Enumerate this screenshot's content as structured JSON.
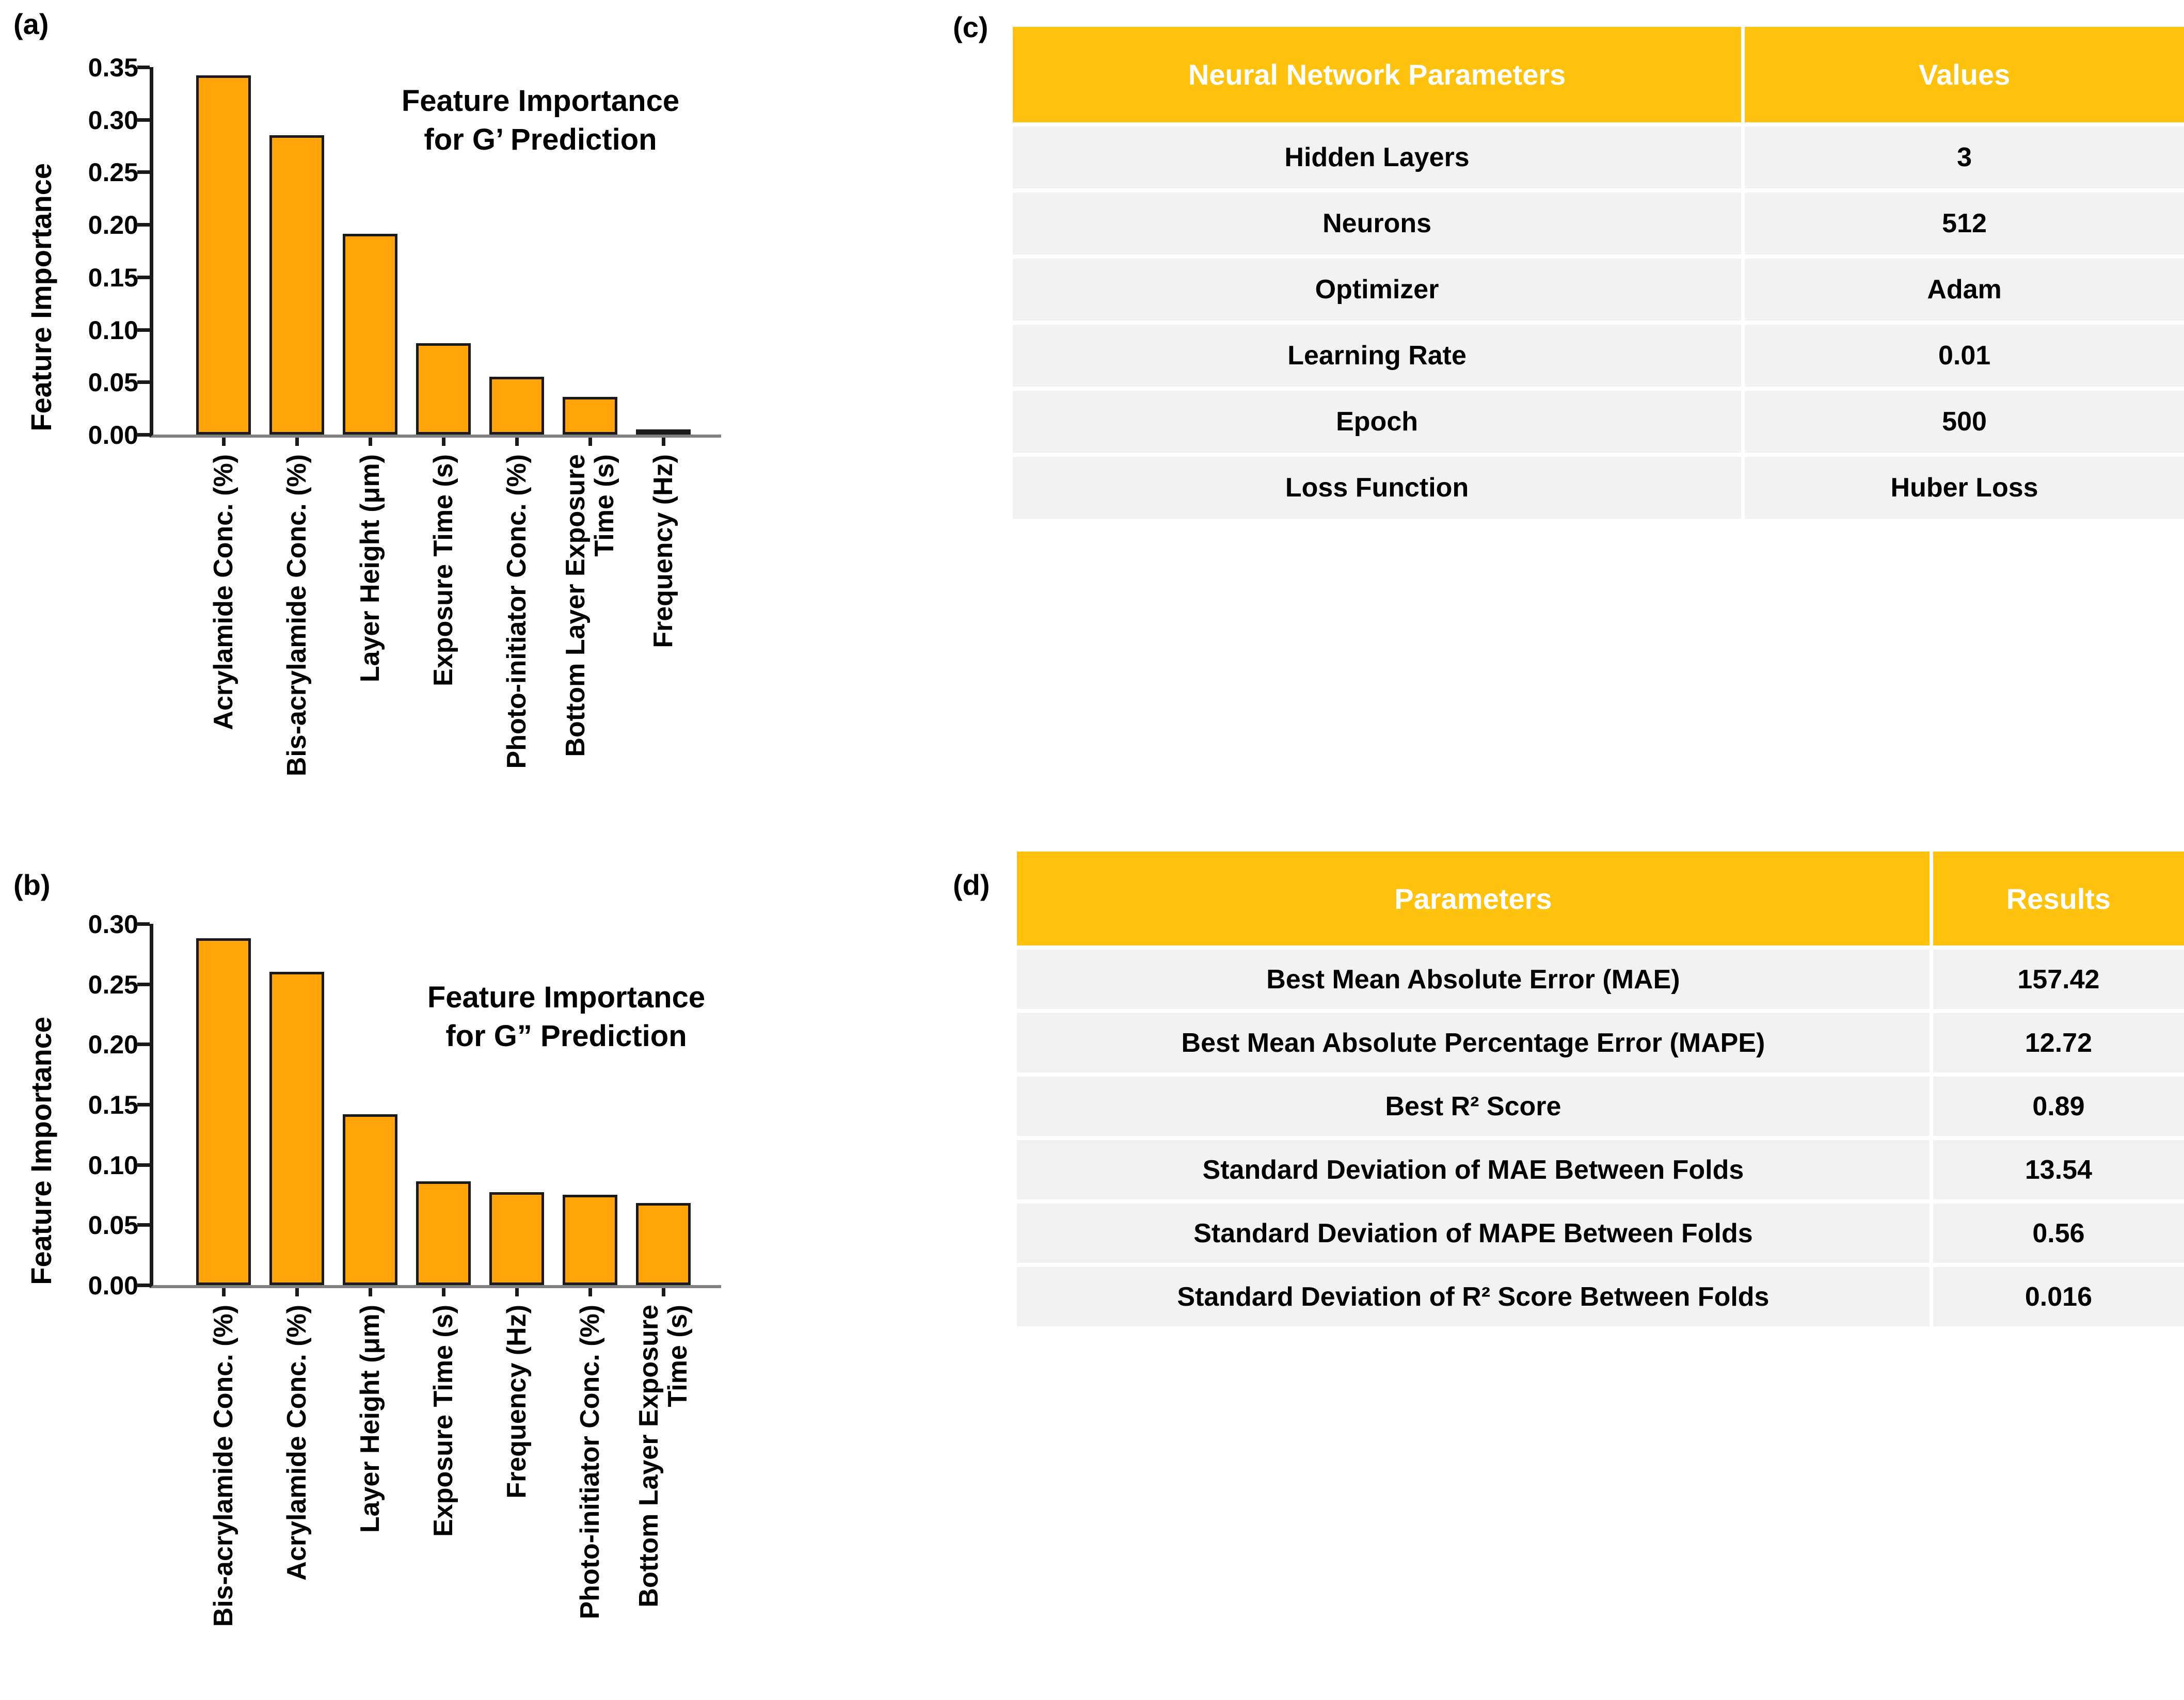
{
  "figure": {
    "background": "#FFFFFF"
  },
  "panels": {
    "a": {
      "label": "(a)"
    },
    "b": {
      "label": "(b)"
    },
    "c": {
      "label": "(c)"
    },
    "d": {
      "label": "(d)"
    }
  },
  "chart_data": [
    {
      "id": "a",
      "type": "bar",
      "title": "Feature Importance\nfor G’ Prediction",
      "ylabel": "Feature Importance",
      "xlabel": "",
      "categories": [
        "Acrylamide Conc. (%)",
        "Bis-acrylamide Conc. (%)",
        "Layer Height (μm)",
        "Exposure Time (s)",
        "Photo-initiator Conc. (%)",
        "Bottom Layer Exposure\nTime (s)",
        "Frequency (Hz)"
      ],
      "values": [
        0.342,
        0.285,
        0.191,
        0.087,
        0.055,
        0.036,
        0.002
      ],
      "ylim": [
        0,
        0.35
      ],
      "ytick_step": 0.05,
      "grid": false,
      "legend": "none"
    },
    {
      "id": "b",
      "type": "bar",
      "title": "Feature Importance\nfor G” Prediction",
      "ylabel": "Feature Importance",
      "xlabel": "",
      "categories": [
        "Bis-acrylamide Conc. (%)",
        "Acrylamide Conc. (%)",
        "Layer Height (μm)",
        "Exposure Time (s)",
        "Frequency (Hz)",
        "Photo-initiator Conc. (%)",
        "Bottom Layer Exposure\nTime (s)"
      ],
      "values": [
        0.288,
        0.26,
        0.142,
        0.086,
        0.077,
        0.075,
        0.068
      ],
      "ylim": [
        0,
        0.3
      ],
      "ytick_step": 0.05,
      "grid": false,
      "legend": "none"
    }
  ],
  "tables": {
    "c": {
      "headers": [
        "Neural Network Parameters",
        "Values"
      ],
      "rows": [
        [
          "Hidden Layers",
          "3"
        ],
        [
          "Neurons",
          "512"
        ],
        [
          "Optimizer",
          "Adam"
        ],
        [
          "Learning Rate",
          "0.01"
        ],
        [
          "Epoch",
          "500"
        ],
        [
          "Loss Function",
          "Huber Loss"
        ]
      ]
    },
    "d": {
      "headers": [
        "Parameters",
        "Results"
      ],
      "rows": [
        [
          "Best Mean Absolute Error (MAE)",
          "157.42"
        ],
        [
          "Best Mean Absolute Percentage Error (MAPE)",
          "12.72"
        ],
        [
          "Best R² Score",
          "0.89"
        ],
        [
          "Standard Deviation of MAE Between Folds",
          "13.54"
        ],
        [
          "Standard Deviation of MAPE Between Folds",
          "0.56"
        ],
        [
          "Standard Deviation of R² Score Between Folds",
          "0.016"
        ]
      ]
    }
  },
  "colors": {
    "bar_fill": "#FFA408",
    "bar_outline": "#1A1A1A",
    "axis": "#1A1A1A",
    "baseline": "#808080",
    "header_bg": "#FFC20E",
    "header_text": "#FFFFFF",
    "row_bg": "#F2F2F2",
    "cell_text": "#000000"
  }
}
